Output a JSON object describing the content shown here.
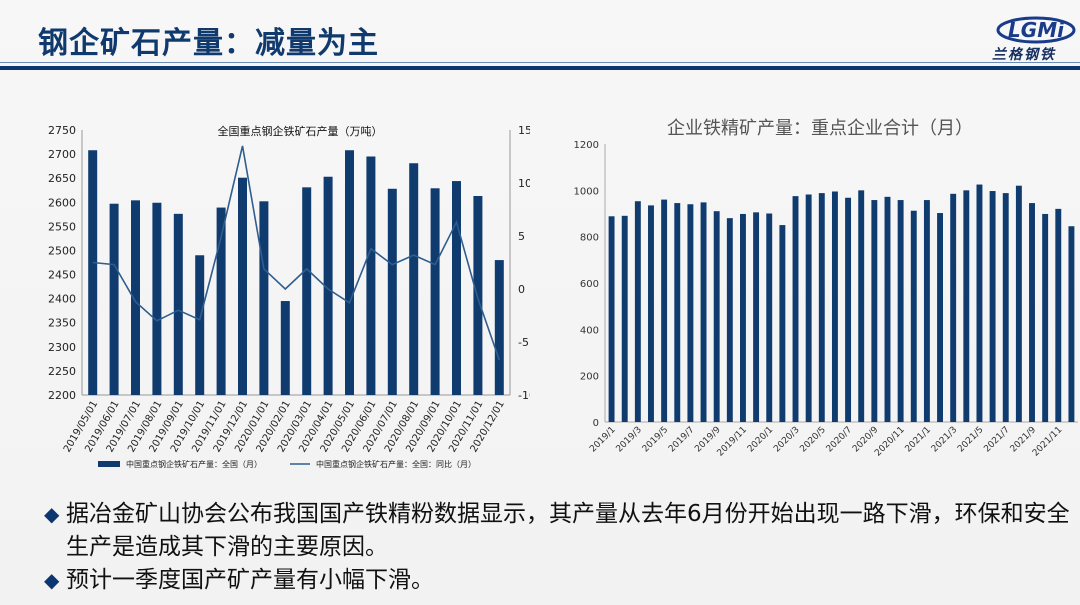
{
  "slide": {
    "title": "钢企矿石产量：减量为主",
    "logo_text": "兰格钢铁",
    "logo_mark": "LGMi"
  },
  "bullets": [
    {
      "mark": "◆",
      "text": "据冶金矿山协会公布我国国产铁精粉数据显示，其产量从去年6月份开始出现一路下滑，环保和安全生产是造成其下滑的主要原因。"
    },
    {
      "mark": "◆",
      "text": "预计一季度国产矿产量有小幅下滑。"
    }
  ],
  "chart_data": [
    {
      "type": "bar",
      "title": "全国重点钢企铁矿石产量（万吨）",
      "categories": [
        "2019/05/01",
        "2019/06/01",
        "2019/07/01",
        "2019/08/01",
        "2019/09/01",
        "2019/10/01",
        "2019/11/01",
        "2019/12/01",
        "2020/01/01",
        "2020/02/01",
        "2020/03/01",
        "2020/04/01",
        "2020/05/01",
        "2020/06/01",
        "2020/07/01",
        "2020/08/01",
        "2020/09/01",
        "2020/10/01",
        "2020/11/01",
        "2020/12/01"
      ],
      "series": [
        {
          "name": "中国重点钢企铁矿石产量：全国（月）",
          "type": "bar",
          "axis": "left",
          "color": "#0f3b6f",
          "values": [
            2708,
            2597,
            2604,
            2599,
            2576,
            2490,
            2589,
            2651,
            2602,
            2395,
            2631,
            2653,
            2708,
            2695,
            2628,
            2681,
            2629,
            2644,
            2613,
            2480
          ]
        },
        {
          "name": "中国重点钢企铁矿石产量：全国：同比（月）",
          "type": "line",
          "axis": "right",
          "color": "#2f5d8e",
          "values": [
            2.5,
            2.3,
            -1.2,
            -3.0,
            -2.0,
            -2.9,
            4.9,
            13.5,
            1.9,
            0.0,
            1.9,
            0.0,
            -1.3,
            3.8,
            2.3,
            3.2,
            2.3,
            6.3,
            -0.9,
            -6.7
          ]
        }
      ],
      "y_left": {
        "min": 2200,
        "max": 2750,
        "step": 50
      },
      "y_right": {
        "min": -10,
        "max": 15,
        "step": 5
      }
    },
    {
      "type": "bar",
      "title": "企业铁精矿产量：重点企业合计（月）",
      "color": "#0f3b6f",
      "tick_labels": [
        "2019/1",
        "2019/3",
        "2019/5",
        "2019/7",
        "2019/9",
        "2019/11",
        "2020/1",
        "2020/3",
        "2020/5",
        "2020/7",
        "2020/9",
        "2020/11",
        "2021/1",
        "2021/3",
        "2021/5",
        "2021/7",
        "2021/9",
        "2021/11"
      ],
      "values": [
        888,
        890,
        953,
        935,
        960,
        945,
        940,
        948,
        910,
        880,
        898,
        905,
        900,
        850,
        975,
        982,
        988,
        995,
        968,
        1000,
        958,
        972,
        958,
        912,
        958,
        902,
        985,
        1000,
        1025,
        997,
        988,
        1020,
        945,
        898,
        920,
        845
      ],
      "ylim": [
        0,
        1200
      ],
      "y_step": 200
    }
  ]
}
